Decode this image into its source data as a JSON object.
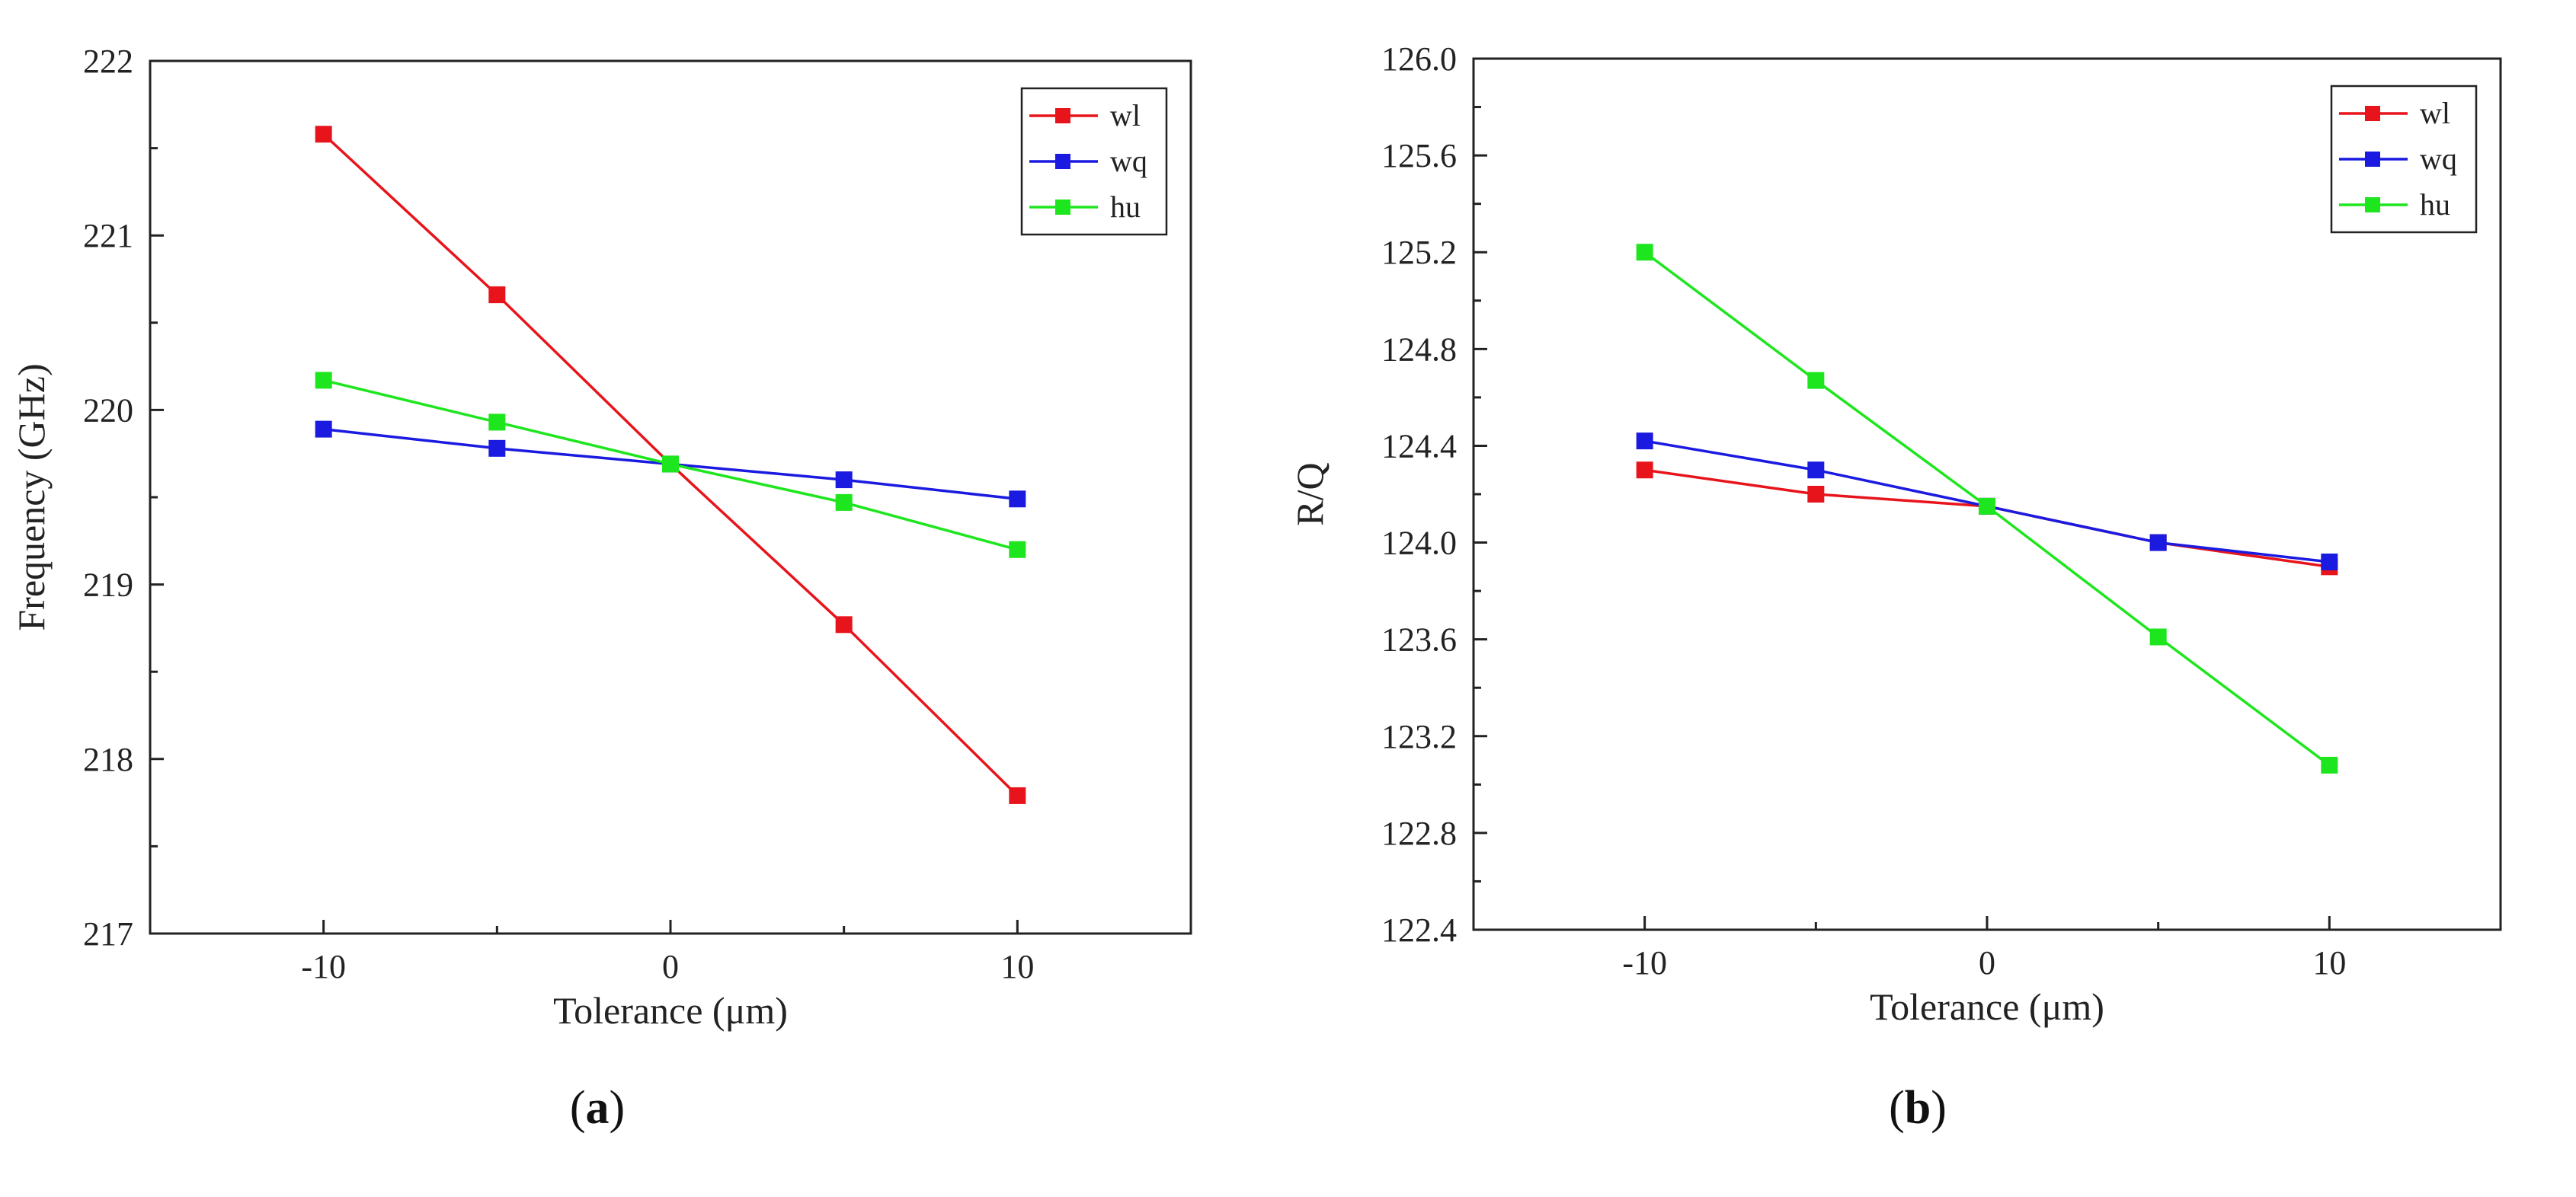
{
  "figure": {
    "caption_a": {
      "open": "(",
      "letter": "a",
      "close": ")"
    },
    "caption_b": {
      "open": "(",
      "letter": "b",
      "close": ")"
    }
  },
  "chart_data": [
    {
      "id": "a",
      "type": "line",
      "title": "",
      "xlabel": "Tolerance (μm)",
      "ylabel": "Frequency (GHz)",
      "xlim": [
        -15,
        15
      ],
      "ylim": [
        217,
        222
      ],
      "xticks": [
        -10,
        0,
        10
      ],
      "xtick_labels": [
        "-10",
        "0",
        "10"
      ],
      "yticks": [
        217,
        218,
        219,
        220,
        221,
        222
      ],
      "ytick_labels": [
        "217",
        "218",
        "219",
        "220",
        "221",
        "222"
      ],
      "grid": false,
      "legend_position": "top-right",
      "x": [
        -10,
        -5,
        0,
        5,
        10
      ],
      "series": [
        {
          "name": "wl",
          "color": "#e8141c",
          "values": [
            221.58,
            220.66,
            219.69,
            218.77,
            217.79
          ]
        },
        {
          "name": "wq",
          "color": "#1a1ae0",
          "values": [
            219.89,
            219.78,
            219.69,
            219.6,
            219.49
          ]
        },
        {
          "name": "hu",
          "color": "#1ee61e",
          "values": [
            220.17,
            219.93,
            219.69,
            219.47,
            219.2
          ]
        }
      ]
    },
    {
      "id": "b",
      "type": "line",
      "title": "",
      "xlabel": "Tolerance (μm)",
      "ylabel": "R/Q",
      "xlim": [
        -15,
        15
      ],
      "ylim": [
        122.4,
        126.0
      ],
      "xticks": [
        -10,
        0,
        10
      ],
      "xtick_labels": [
        "-10",
        "0",
        "10"
      ],
      "yticks": [
        122.4,
        122.8,
        123.2,
        123.6,
        124.0,
        124.4,
        124.8,
        125.2,
        125.6,
        126.0
      ],
      "ytick_labels": [
        "122.4",
        "122.8",
        "123.2",
        "123.6",
        "124.0",
        "124.4",
        "124.8",
        "125.2",
        "125.6",
        "126.0"
      ],
      "grid": false,
      "legend_position": "top-right",
      "x": [
        -10,
        -5,
        0,
        5,
        10
      ],
      "series": [
        {
          "name": "wl",
          "color": "#e8141c",
          "values": [
            124.3,
            124.2,
            124.15,
            124.0,
            123.9
          ]
        },
        {
          "name": "wq",
          "color": "#1a1ae0",
          "values": [
            124.42,
            124.3,
            124.15,
            124.0,
            123.92
          ]
        },
        {
          "name": "hu",
          "color": "#1ee61e",
          "values": [
            125.2,
            124.67,
            124.15,
            123.61,
            123.08
          ]
        }
      ]
    }
  ]
}
